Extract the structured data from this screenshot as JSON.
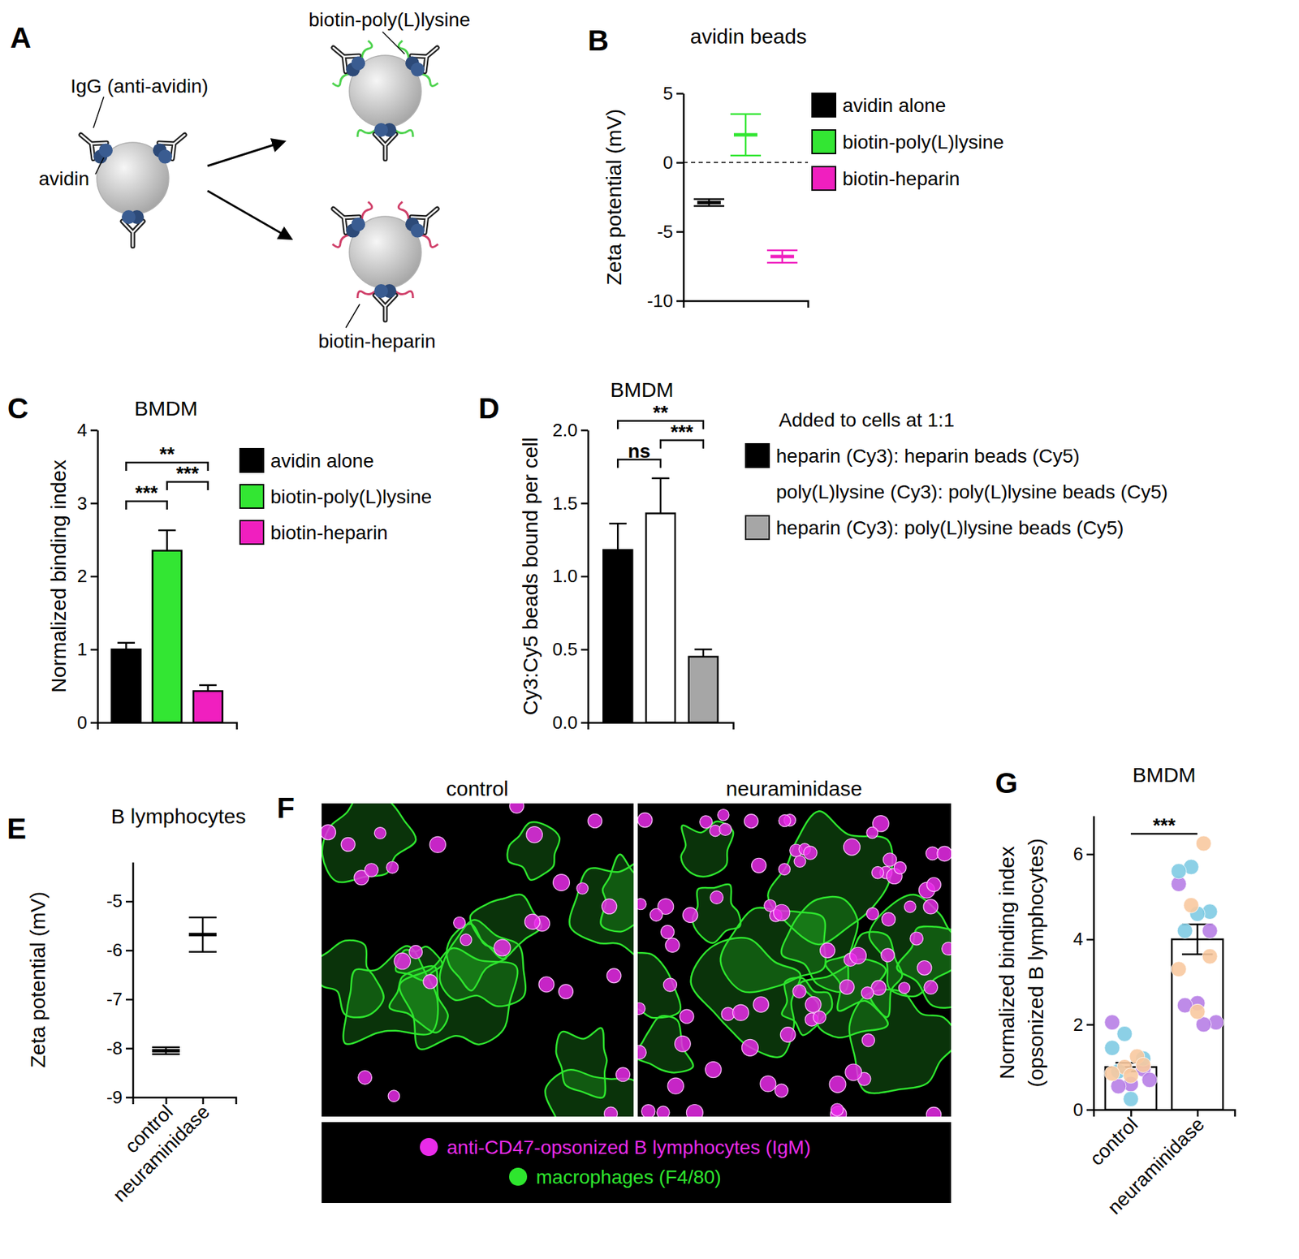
{
  "panel_labels": [
    "A",
    "B",
    "C",
    "D",
    "E",
    "F",
    "G"
  ],
  "diagram": {
    "top_label": "biotin-poly(L)lysine",
    "igg_label": "IgG (anti-avidin)",
    "avidin_label": "avidin",
    "bottom_label": "biotin-heparin"
  },
  "image_panel": {
    "titles": [
      "control",
      "neuraminidase"
    ],
    "legend": [
      {
        "text": "anti-CD47-opsonized B lymphocytes (IgM)",
        "color": "#e92be9"
      },
      {
        "text": "macrophages (F4/80)",
        "color": "#2ee62e"
      }
    ]
  },
  "chart_data": [
    {
      "type": "errorbar",
      "title": "avidin beads",
      "y_label": "Zeta potential (mV)",
      "categories": [
        "avidin alone",
        "biotin-poly(L)lysine",
        "biotin-heparin"
      ],
      "values": [
        -2.9,
        2.0,
        -6.8
      ],
      "errors": [
        0.25,
        1.5,
        0.45
      ],
      "colors": [
        "#000000",
        "#33e633",
        "#f01fbf"
      ],
      "ylim": [
        -10,
        5
      ],
      "yticks": [
        -10,
        -5,
        0,
        5
      ],
      "reference_line": 0,
      "tick_labels": "y",
      "legend": "right"
    },
    {
      "type": "bar",
      "title": "BMDM",
      "y_label": "Normalized binding index",
      "categories": [
        "avidin alone",
        "biotin-poly(L)lysine",
        "biotin-heparin"
      ],
      "values": [
        1.0,
        2.35,
        0.43
      ],
      "errors": [
        0.09,
        0.28,
        0.08
      ],
      "colors": [
        "#000000",
        "#33e633",
        "#f01fbf"
      ],
      "ylim": [
        0,
        4
      ],
      "yticks": [
        0,
        1,
        2,
        3,
        4
      ],
      "tick_labels": "y",
      "legend": "right",
      "annotations": [
        {
          "from": 0,
          "to": 1,
          "text": "***"
        },
        {
          "from": 1,
          "to": 2,
          "text": "***"
        },
        {
          "from": 0,
          "to": 2,
          "text": "**"
        }
      ]
    },
    {
      "type": "bar",
      "title": "BMDM",
      "y_label": "Cy3:Cy5 beads bound per cell",
      "legend_title": "Added to cells at 1:1",
      "categories": [
        "heparin (Cy3): heparin beads (Cy5)",
        "poly(L)lysine (Cy3): poly(L)lysine beads (Cy5)",
        "heparin (Cy3): poly(L)lysine beads (Cy5)"
      ],
      "values": [
        1.18,
        1.43,
        0.45
      ],
      "errors": [
        0.18,
        0.24,
        0.05
      ],
      "colors": [
        "#000000",
        "#ffffff",
        "#a6a6a6"
      ],
      "ylim": [
        0,
        2
      ],
      "yticks": [
        {
          "value": 0,
          "label": "0.0"
        },
        0.5,
        {
          "value": 1,
          "label": "1.0"
        },
        1.5,
        {
          "value": 2,
          "label": "2.0"
        }
      ],
      "tick_labels": "y",
      "legend": "right",
      "annotations": [
        {
          "from": 0,
          "to": 1,
          "text": "ns"
        },
        {
          "from": 1,
          "to": 2,
          "text": "***"
        },
        {
          "from": 0,
          "to": 2,
          "text": "**"
        }
      ]
    },
    {
      "type": "errorbar",
      "title": "B lymphocytes",
      "y_label": "Zeta potential (mV)",
      "categories": [
        "control",
        "neuraminidase"
      ],
      "values": [
        -8.05,
        -5.68
      ],
      "errors": [
        0.07,
        0.35
      ],
      "color": "#000000",
      "ylim": [
        -9,
        -4.2
      ],
      "yticks": [
        -9,
        -8,
        -7,
        -6,
        -5
      ]
    },
    {
      "type": "bar",
      "title": "BMDM",
      "y_label": [
        "Normalized binding index",
        "(opsonized B lymphocytes)"
      ],
      "categories": [
        "control",
        "neuraminidase"
      ],
      "values": [
        1.0,
        4.0
      ],
      "errors": [
        0.1,
        0.35
      ],
      "color": "#ffffff",
      "points": [
        {
          "color": "#b77ee6",
          "values": [
            [
              2.05,
              0.95,
              0.6,
              0.55,
              0.7
            ],
            [
              5.3,
              4.2,
              2.5,
              2.45,
              2.05,
              2.0
            ]
          ]
        },
        {
          "color": "#80cbe3",
          "values": [
            [
              1.78,
              1.45,
              1.2,
              0.25,
              0.9
            ],
            [
              5.7,
              5.6,
              4.65,
              4.6,
              4.2
            ]
          ]
        },
        {
          "color": "#f8c9a0",
          "values": [
            [
              1.25,
              1.0,
              0.85,
              1.05,
              0.8
            ],
            [
              6.25,
              4.8,
              3.3,
              3.6,
              2.3
            ]
          ]
        }
      ],
      "ylim": [
        0,
        6.9
      ],
      "yticks": [
        0,
        2,
        4,
        6
      ],
      "annotations": [
        {
          "from": 0,
          "to": 1,
          "text": "***"
        }
      ]
    }
  ]
}
